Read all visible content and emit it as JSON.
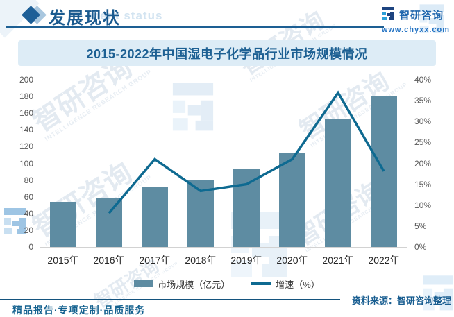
{
  "header": {
    "section_title": "发展现状",
    "section_title_en_watermark": "ment status",
    "brand": "智研咨询",
    "website": "www.chyxx.com"
  },
  "watermark": {
    "brand": "智研咨询",
    "group": "INTELLIGENCE RESEARCH GROUP"
  },
  "chart_data": {
    "type": "bar+line",
    "title": "2015-2022年中国湿电子化学品行业市场规模情况",
    "categories": [
      "2015年",
      "2016年",
      "2017年",
      "2018年",
      "2019年",
      "2020年",
      "2021年",
      "2022年"
    ],
    "series": [
      {
        "name": "市场规模（亿元）",
        "type": "bar",
        "axis": "left",
        "color": "#5e8ca2",
        "values": [
          54.3,
          58.7,
          71.0,
          80.5,
          92.6,
          112.0,
          153.3,
          181.0
        ]
      },
      {
        "name": "增速（%）",
        "type": "line",
        "axis": "right",
        "color": "#0e6a91",
        "values": [
          null,
          8.1,
          21.0,
          13.4,
          15.0,
          21.0,
          36.9,
          18.1
        ]
      }
    ],
    "left_axis": {
      "min": 0,
      "max": 200,
      "step": 20,
      "ticks": [
        "0",
        "20",
        "40",
        "60",
        "80",
        "100",
        "120",
        "140",
        "160",
        "180",
        "200"
      ]
    },
    "right_axis": {
      "min": 0,
      "max": 40,
      "step": 5,
      "ticks": [
        "0%",
        "5%",
        "10%",
        "15%",
        "20%",
        "25%",
        "30%",
        "35%",
        "40%"
      ]
    },
    "grid": false,
    "legend_position": "bottom"
  },
  "footer": {
    "source": "资料来源：智研咨询整理",
    "tagline": "精品报告·专项定制·品质服务"
  }
}
